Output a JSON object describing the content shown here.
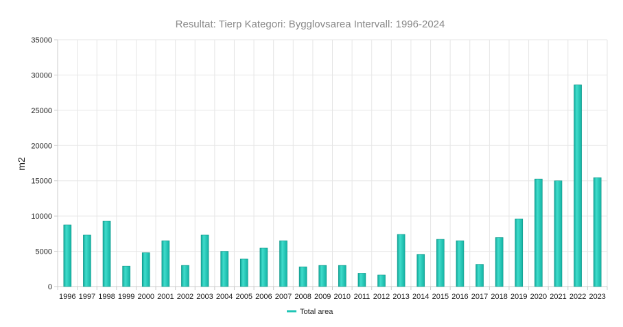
{
  "chart_data": {
    "type": "bar",
    "title": "Resultat: Tierp Kategori: Bygglovsarea Intervall: 1996-2024",
    "xlabel": "",
    "ylabel": "m2",
    "ylim": [
      0,
      35000
    ],
    "yticks": [
      0,
      5000,
      10000,
      15000,
      20000,
      25000,
      30000,
      35000
    ],
    "yticklabels": [
      "0",
      "5000",
      "10000",
      "15000",
      "20000",
      "25000",
      "30000",
      "35000"
    ],
    "grid": true,
    "legend_position": "bottom-center",
    "categories": [
      "1996",
      "1997",
      "1998",
      "1999",
      "2000",
      "2001",
      "2002",
      "2003",
      "2004",
      "2005",
      "2006",
      "2007",
      "2008",
      "2009",
      "2010",
      "2011",
      "2012",
      "2013",
      "2014",
      "2015",
      "2016",
      "2017",
      "2018",
      "2019",
      "2020",
      "2021",
      "2022",
      "2023"
    ],
    "series": [
      {
        "name": "Total area",
        "color": "#1fc5b5",
        "values": [
          8750,
          7300,
          9300,
          2900,
          4800,
          6500,
          3000,
          7300,
          5000,
          3900,
          5450,
          6500,
          2800,
          3000,
          3000,
          1900,
          1650,
          7400,
          4550,
          6700,
          6500,
          3150,
          6950,
          9600,
          15250,
          15000,
          28600,
          15450
        ]
      }
    ]
  }
}
